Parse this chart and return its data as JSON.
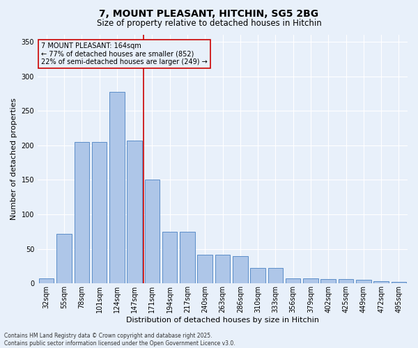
{
  "title_line1": "7, MOUNT PLEASANT, HITCHIN, SG5 2BG",
  "title_line2": "Size of property relative to detached houses in Hitchin",
  "xlabel": "Distribution of detached houses by size in Hitchin",
  "ylabel": "Number of detached properties",
  "annotation_line1": "7 MOUNT PLEASANT: 164sqm",
  "annotation_line2": "← 77% of detached houses are smaller (852)",
  "annotation_line3": "22% of semi-detached houses are larger (249) →",
  "footer_line1": "Contains HM Land Registry data © Crown copyright and database right 2025.",
  "footer_line2": "Contains public sector information licensed under the Open Government Licence v3.0.",
  "categories": [
    "32sqm",
    "55sqm",
    "78sqm",
    "101sqm",
    "124sqm",
    "147sqm",
    "171sqm",
    "194sqm",
    "217sqm",
    "240sqm",
    "263sqm",
    "286sqm",
    "310sqm",
    "333sqm",
    "356sqm",
    "379sqm",
    "402sqm",
    "425sqm",
    "449sqm",
    "472sqm",
    "495sqm"
  ],
  "values": [
    7,
    72,
    205,
    205,
    277,
    207,
    150,
    75,
    75,
    42,
    42,
    40,
    22,
    22,
    7,
    7,
    6,
    6,
    5,
    3,
    2
  ],
  "bar_color": "#aec6e8",
  "bar_edge_color": "#5b8dc8",
  "bg_color": "#e8f0fa",
  "vline_x": 5.5,
  "vline_color": "#cc0000",
  "annotation_box_color": "#cc0000",
  "ylim": [
    0,
    360
  ],
  "yticks": [
    0,
    50,
    100,
    150,
    200,
    250,
    300,
    350
  ],
  "title_fontsize": 10,
  "subtitle_fontsize": 8.5,
  "xlabel_fontsize": 8,
  "ylabel_fontsize": 8,
  "tick_fontsize": 7,
  "annot_fontsize": 7,
  "footer_fontsize": 5.5
}
